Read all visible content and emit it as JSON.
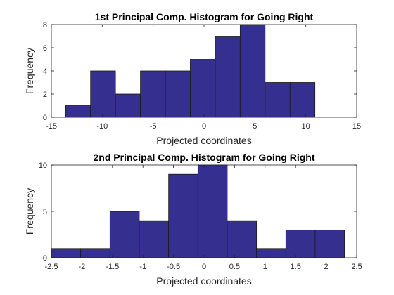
{
  "chart_data": [
    {
      "type": "bar",
      "title": "1st Principal Comp. Histogram for Going Right",
      "xlabel": "Projected coordinates",
      "ylabel": "Frequency",
      "xlim": [
        -15,
        15
      ],
      "ylim": [
        0,
        8
      ],
      "xticks": [
        "-15",
        "-10",
        "-5",
        "0",
        "5",
        "10",
        "15"
      ],
      "yticks": [
        "0",
        "2",
        "4",
        "6",
        "8"
      ],
      "bin_edges": [
        -13.6,
        -11.15,
        -8.7,
        -6.25,
        -3.8,
        -1.35,
        1.1,
        3.55,
        6.0,
        8.45,
        10.9
      ],
      "values": [
        1,
        4,
        2,
        4,
        4,
        5,
        7,
        8,
        3,
        3
      ],
      "bar_color": "#35308f",
      "grid": false
    },
    {
      "type": "bar",
      "title": "2nd Principal Comp. Histogram for Going Right",
      "xlabel": "Projected coordinates",
      "ylabel": "Frequency",
      "xlim": [
        -2.5,
        2.5
      ],
      "ylim": [
        0,
        10
      ],
      "xticks": [
        "-2.5",
        "-2",
        "-1.5",
        "-1",
        "-0.5",
        "0",
        "0.5",
        "1",
        "1.5",
        "2",
        "2.5"
      ],
      "yticks": [
        "0",
        "5",
        "10"
      ],
      "bin_edges": [
        -2.5,
        -2.02,
        -1.54,
        -1.06,
        -0.58,
        -0.1,
        0.38,
        0.86,
        1.34,
        1.82,
        2.3
      ],
      "values": [
        1,
        1,
        5,
        4,
        9,
        10,
        4,
        1,
        3,
        3
      ],
      "bar_color": "#35308f",
      "grid": false
    }
  ]
}
